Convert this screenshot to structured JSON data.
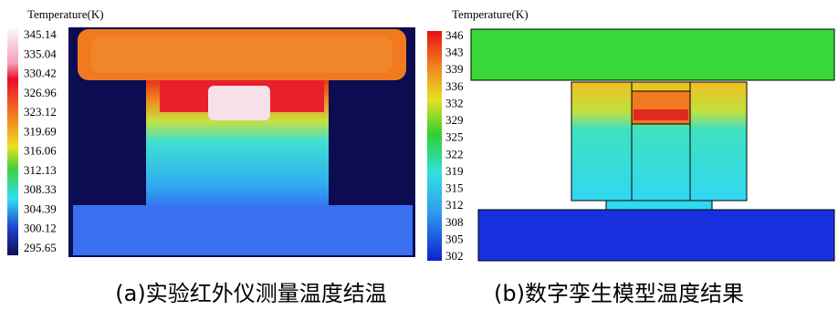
{
  "panels": [
    {
      "colorbar_title": "Temperature(K)",
      "colorbar_labels": [
        "345.14",
        "335.04",
        "330.42",
        "326.96",
        "323.12",
        "319.69",
        "316.06",
        "312.13",
        "308.33",
        "304.39",
        "300.12",
        "295.65"
      ],
      "caption": "(a)实验红外仪测量温度结温"
    },
    {
      "colorbar_title": "Temperature(K)",
      "colorbar_labels": [
        "346",
        "343",
        "339",
        "336",
        "332",
        "329",
        "325",
        "322",
        "319",
        "315",
        "312",
        "308",
        "305",
        "302"
      ],
      "caption": "(b)数字孪生模型温度结果"
    }
  ]
}
